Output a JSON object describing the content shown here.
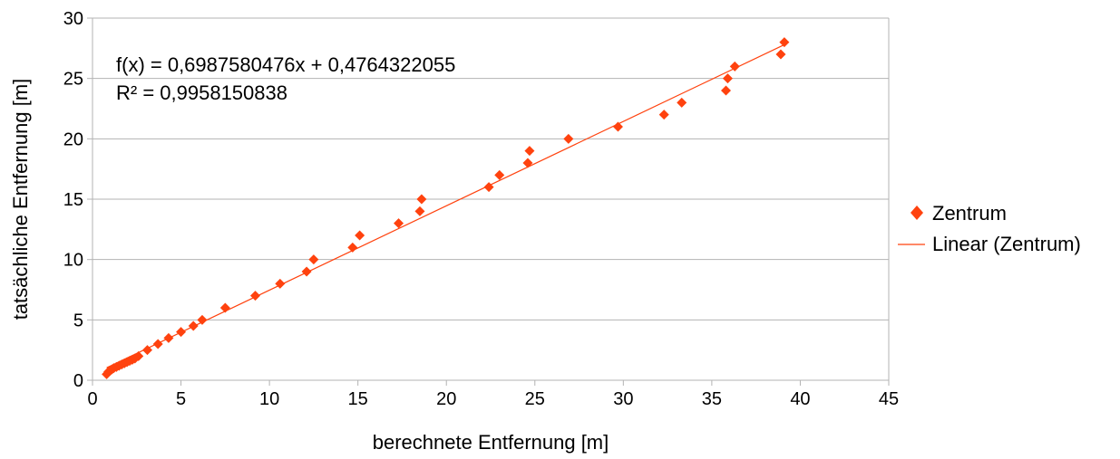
{
  "chart_data": {
    "type": "scatter",
    "xlabel": "berechnete Entfernung [m]",
    "ylabel": "tatsächliche Entfernung [m]",
    "xlim": [
      0,
      45
    ],
    "ylim": [
      0,
      30
    ],
    "xticks": [
      "0",
      "5",
      "10",
      "15",
      "20",
      "25",
      "30",
      "35",
      "40",
      "45"
    ],
    "yticks": [
      "0",
      "5",
      "10",
      "15",
      "20",
      "25",
      "30"
    ],
    "grid": "horizontal",
    "legend_position": "right",
    "colors": {
      "points": "#ff420e",
      "trendline": "#ff420e",
      "grid": "#b3b3b3",
      "axis": "#b3b3b3"
    },
    "equation": "f(x) = 0,6987580476x + 0,4764322055",
    "r_squared": "R² = 0,9958150838",
    "trendline": {
      "slope": 0.6987580476,
      "intercept": 0.4764322055,
      "x_range": [
        0.8,
        39.2
      ]
    },
    "legend": {
      "points_label": "Zentrum",
      "line_label": "Linear (Zentrum)"
    },
    "series": [
      {
        "name": "Zentrum",
        "marker": "diamond",
        "points": [
          [
            0.8,
            0.5
          ],
          [
            0.9,
            0.7
          ],
          [
            1.0,
            0.8
          ],
          [
            1.1,
            0.9
          ],
          [
            1.2,
            1.0
          ],
          [
            1.35,
            1.1
          ],
          [
            1.5,
            1.2
          ],
          [
            1.65,
            1.3
          ],
          [
            1.8,
            1.4
          ],
          [
            1.95,
            1.5
          ],
          [
            2.1,
            1.6
          ],
          [
            2.25,
            1.7
          ],
          [
            2.4,
            1.8
          ],
          [
            2.6,
            2.0
          ],
          [
            3.1,
            2.5
          ],
          [
            3.7,
            3.0
          ],
          [
            4.3,
            3.5
          ],
          [
            5.0,
            4.0
          ],
          [
            5.7,
            4.5
          ],
          [
            6.2,
            5.0
          ],
          [
            7.5,
            6.0
          ],
          [
            9.2,
            7.0
          ],
          [
            10.6,
            8.0
          ],
          [
            12.1,
            9.0
          ],
          [
            12.5,
            10.0
          ],
          [
            14.7,
            11.0
          ],
          [
            15.1,
            12.0
          ],
          [
            17.3,
            13.0
          ],
          [
            18.5,
            14.0
          ],
          [
            18.6,
            15.0
          ],
          [
            22.4,
            16.0
          ],
          [
            23.0,
            17.0
          ],
          [
            24.6,
            18.0
          ],
          [
            24.7,
            19.0
          ],
          [
            26.9,
            20.0
          ],
          [
            29.7,
            21.0
          ],
          [
            32.3,
            22.0
          ],
          [
            33.3,
            23.0
          ],
          [
            35.8,
            24.0
          ],
          [
            35.9,
            25.0
          ],
          [
            36.3,
            26.0
          ],
          [
            38.9,
            27.0
          ],
          [
            39.1,
            28.0
          ]
        ]
      }
    ]
  }
}
